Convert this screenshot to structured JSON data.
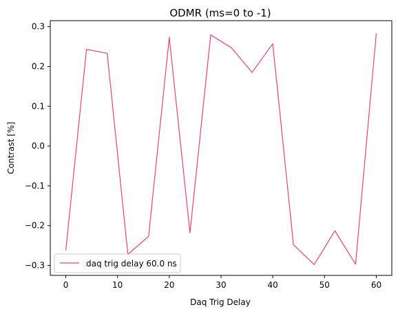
{
  "chart_data": {
    "type": "line",
    "title": "ODMR (ms=0 to -1)",
    "xlabel": "Daq Trig Delay",
    "ylabel": "Contrast [%]",
    "xlim": [
      -3,
      63
    ],
    "ylim": [
      -0.325,
      0.315
    ],
    "xticks": [
      0,
      10,
      20,
      30,
      40,
      50,
      60
    ],
    "yticks": [
      -0.3,
      -0.2,
      -0.1,
      0.0,
      0.1,
      0.2,
      0.3
    ],
    "ytick_labels": [
      "−0.3",
      "−0.2",
      "−0.1",
      "0.0",
      "0.1",
      "0.2",
      "0.3"
    ],
    "grid": false,
    "legend_position": "lower-left",
    "series": [
      {
        "name": "daq trig delay 60.0 ns",
        "color": "#e8407a",
        "x": [
          0,
          4,
          8,
          12,
          16,
          20,
          24,
          28,
          32,
          36,
          40,
          44,
          48,
          52,
          56,
          60
        ],
        "y": [
          -0.262,
          0.243,
          0.233,
          -0.272,
          -0.227,
          0.273,
          -0.218,
          0.279,
          0.247,
          0.185,
          0.257,
          -0.248,
          -0.298,
          -0.213,
          -0.297,
          0.283
        ]
      }
    ]
  }
}
